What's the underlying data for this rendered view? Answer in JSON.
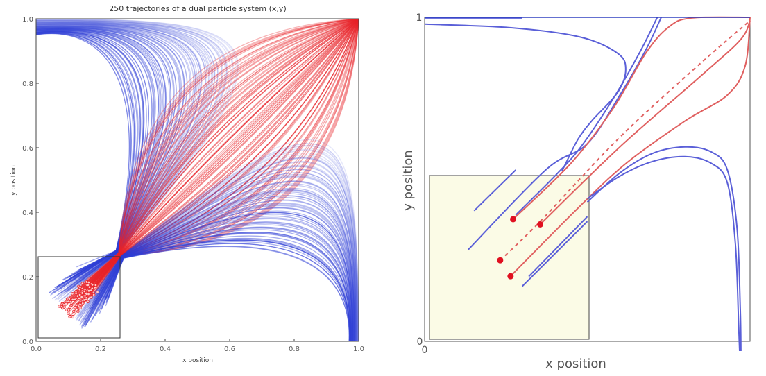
{
  "chart_data": [
    {
      "type": "line",
      "title": "250 trajectories of a dual particle system (x,y)",
      "xlabel": "x position",
      "ylabel": "y position",
      "xlim": [
        0,
        1
      ],
      "ylim": [
        0,
        1
      ],
      "xticks": [
        "0.0",
        "0.2",
        "0.4",
        "0.6",
        "0.8",
        "1.0"
      ],
      "yticks": [
        "0.0",
        "0.2",
        "0.4",
        "0.6",
        "0.8",
        "1.0"
      ],
      "n_trajectories": 250,
      "attractor_red": [
        1,
        1
      ],
      "convergence_point": [
        0.26,
        0.27
      ],
      "inset_box": {
        "x": [
          0.01,
          0.26
        ],
        "y": [
          0.01,
          0.26
        ]
      },
      "colors": {
        "red": "#e8242a",
        "blue": "#2f3fd6"
      }
    },
    {
      "type": "line",
      "title": "",
      "xlabel": "x position",
      "ylabel": "y position",
      "xlim": [
        0,
        1
      ],
      "ylim": [
        0,
        1
      ],
      "xticks": [
        "0"
      ],
      "yticks": [
        "0",
        "1"
      ],
      "inset_box": {
        "x": [
          0.015,
          0.505
        ],
        "y": [
          0.005,
          0.51
        ],
        "fill": "#fbfbe6"
      },
      "series": [
        {
          "color": "#5a5fd8",
          "dashed": false,
          "points": [
            [
              0,
              0.998
            ],
            [
              0.3,
              0.998
            ]
          ]
        },
        {
          "color": "#5a5fd8",
          "dashed": false,
          "points": [
            [
              0,
              0.979
            ],
            [
              0.266,
              0.968
            ],
            [
              0.479,
              0.939
            ],
            [
              0.593,
              0.889
            ],
            [
              0.618,
              0.839
            ],
            [
              0.593,
              0.768
            ],
            [
              0.515,
              0.682
            ],
            [
              0.472,
              0.625
            ],
            [
              0.436,
              0.554
            ],
            [
              0.422,
              0.525
            ]
          ]
        },
        {
          "color": "#5a5fd8",
          "dashed": false,
          "points": [
            [
              0.28,
              0.529
            ],
            [
              0.152,
              0.403
            ]
          ]
        },
        {
          "color": "#5a5fd8",
          "dashed": false,
          "points": [
            [
              0.727,
              1.0
            ],
            [
              0.68,
              0.9
            ],
            [
              0.6,
              0.76
            ],
            [
              0.5,
              0.61
            ],
            [
              0.372,
              0.529
            ],
            [
              0.134,
              0.283
            ]
          ]
        },
        {
          "color": "#5a5fd8",
          "dashed": false,
          "points": [
            [
              0.715,
              1.0
            ],
            [
              0.66,
              0.89
            ],
            [
              0.58,
              0.75
            ],
            [
              0.48,
              0.6
            ],
            [
              0.4,
              0.51
            ],
            [
              0.28,
              0.39
            ]
          ]
        },
        {
          "color": "#e06060",
          "dashed": false,
          "points": [
            [
              0.272,
              0.377
            ],
            [
              0.45,
              0.55
            ],
            [
              0.58,
              0.72
            ],
            [
              0.68,
              0.89
            ],
            [
              0.75,
              0.97
            ],
            [
              0.82,
              0.998
            ],
            [
              1,
              1
            ]
          ]
        },
        {
          "color": "#e06060",
          "dashed": true,
          "points": [
            [
              0.232,
              0.25
            ],
            [
              0.355,
              0.37
            ],
            [
              0.6,
              0.63
            ],
            [
              0.85,
              0.86
            ],
            [
              1,
              0.99
            ]
          ]
        },
        {
          "color": "#e06060",
          "dashed": false,
          "points": [
            [
              0.355,
              0.361
            ],
            [
              0.6,
              0.6
            ],
            [
              0.85,
              0.82
            ],
            [
              0.97,
              0.93
            ],
            [
              1,
              0.99
            ]
          ]
        },
        {
          "color": "#e06060",
          "dashed": false,
          "points": [
            [
              0.264,
              0.201
            ],
            [
              0.47,
              0.41
            ],
            [
              0.62,
              0.55
            ],
            [
              0.8,
              0.68
            ],
            [
              0.93,
              0.76
            ],
            [
              0.985,
              0.85
            ],
            [
              1,
              1
            ]
          ]
        },
        {
          "color": "#5a5fd8",
          "dashed": false,
          "points": [
            [
              0.3,
              0.17
            ],
            [
              0.5,
              0.37
            ]
          ]
        },
        {
          "color": "#5a5fd8",
          "dashed": false,
          "points": [
            [
              0.32,
              0.2
            ],
            [
              0.5,
              0.385
            ]
          ]
        },
        {
          "color": "#5a5fd8",
          "dashed": false,
          "points": [
            [
              0.5,
              0.43
            ],
            [
              0.6,
              0.52
            ],
            [
              0.7,
              0.58
            ],
            [
              0.8,
              0.6
            ],
            [
              0.88,
              0.585
            ],
            [
              0.93,
              0.53
            ],
            [
              0.96,
              0.35
            ],
            [
              0.97,
              0.1
            ],
            [
              0.972,
              -0.03
            ]
          ]
        },
        {
          "color": "#5a5fd8",
          "dashed": false,
          "points": [
            [
              0.5,
              0.44
            ],
            [
              0.6,
              0.51
            ],
            [
              0.7,
              0.555
            ],
            [
              0.8,
              0.57
            ],
            [
              0.88,
              0.55
            ],
            [
              0.93,
              0.49
            ],
            [
              0.955,
              0.3
            ],
            [
              0.965,
              0.05
            ],
            [
              0.968,
              -0.03
            ]
          ]
        }
      ],
      "dots": {
        "color": "#e01020",
        "points": [
          [
            0.272,
            0.377
          ],
          [
            0.355,
            0.361
          ],
          [
            0.232,
            0.25
          ],
          [
            0.264,
            0.201
          ]
        ]
      }
    }
  ]
}
